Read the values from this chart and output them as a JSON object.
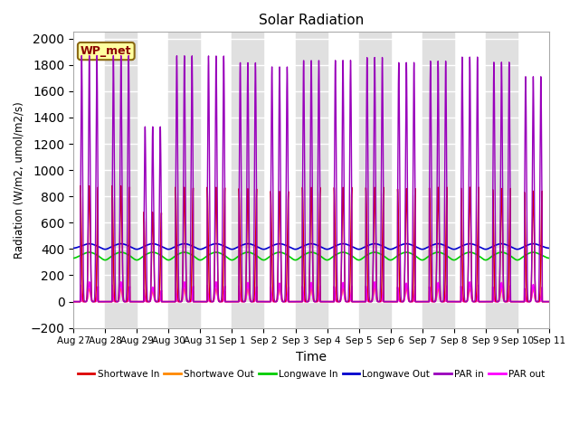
{
  "title": "Solar Radiation",
  "xlabel": "Time",
  "ylabel": "Radiation (W/m2, umol/m2/s)",
  "ylim": [
    -200,
    2050
  ],
  "yticks": [
    -200,
    0,
    200,
    400,
    600,
    800,
    1000,
    1200,
    1400,
    1600,
    1800,
    2000
  ],
  "num_days": 15,
  "annotation_text": "WP_met",
  "annotation_color": "#8B0000",
  "annotation_bg": "#ffffa0",
  "annotation_edge": "#8B6914",
  "bg_stripe_color": "#e0e0e0",
  "colors": {
    "shortwave_in": "#dd0000",
    "shortwave_out": "#ff8800",
    "longwave_in": "#00cc00",
    "longwave_out": "#0000cc",
    "par_in": "#9900bb",
    "par_out": "#ff00ff"
  },
  "legend_labels": [
    "Shortwave In",
    "Shortwave Out",
    "Longwave In",
    "Longwave Out",
    "PAR in",
    "PAR out"
  ],
  "x_tick_labels": [
    "Aug 27",
    "Aug 28",
    "Aug 29",
    "Aug 30",
    "Aug 31",
    "Sep 1",
    "Sep 2",
    "Sep 3",
    "Sep 4",
    "Sep 5",
    "Sep 6",
    "Sep 7",
    "Sep 8",
    "Sep 9",
    "Sep 10",
    "Sep 11"
  ],
  "sw_in_peaks": [
    880,
    880,
    680,
    870,
    870,
    860,
    840,
    870,
    870,
    870,
    860,
    870,
    870,
    860,
    840
  ],
  "sw_out_peaks": [
    100,
    100,
    80,
    100,
    100,
    100,
    100,
    100,
    100,
    105,
    100,
    100,
    100,
    100,
    100
  ],
  "par_in_peaks": [
    1870,
    1870,
    1330,
    1870,
    1870,
    1820,
    1790,
    1840,
    1840,
    1860,
    1820,
    1830,
    1860,
    1820,
    1710
  ],
  "par_out_peaks": [
    150,
    150,
    110,
    150,
    150,
    145,
    140,
    145,
    145,
    150,
    140,
    145,
    150,
    145,
    130
  ],
  "lw_in_base": 345,
  "lw_out_base": 415
}
